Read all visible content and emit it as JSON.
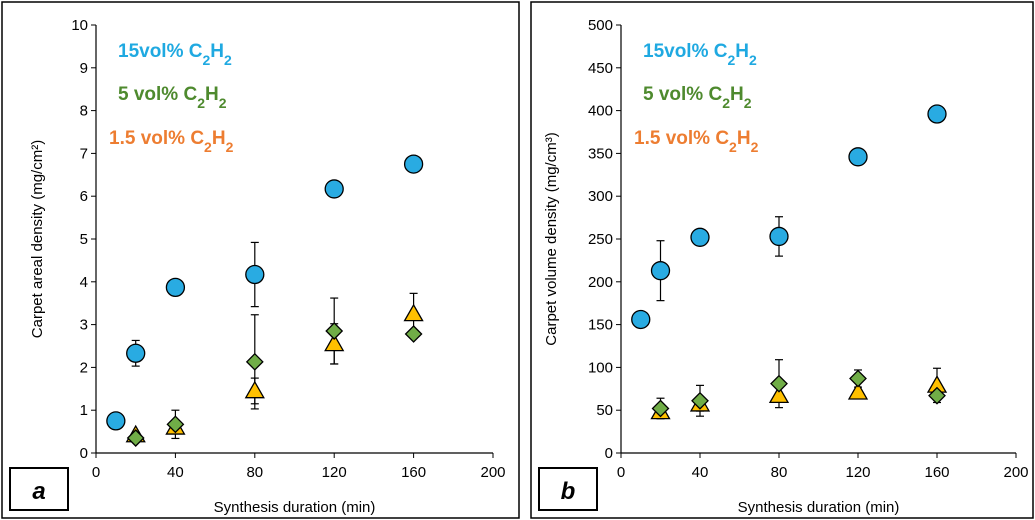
{
  "colors": {
    "s15": "#29ABE2",
    "s5": "#70AD47",
    "s15_text": "#1FA9E1",
    "s5_text": "#4E8A2E",
    "s1_5_text": "#ED7D31",
    "s1_5_fill": "#FFC000"
  },
  "legend": {
    "s15": {
      "prefix": "15vol% C",
      "sub1": "2",
      "mid": "H",
      "sub2": "2"
    },
    "s5": {
      "prefix": "5 vol% C",
      "sub1": "2",
      "mid": "H",
      "sub2": "2"
    },
    "s1_5": {
      "prefix": "1.5 vol% C",
      "sub1": "2",
      "mid": "H",
      "sub2": "2"
    }
  },
  "chart_data": [
    {
      "type": "scatter",
      "panel_label": "a",
      "xlabel": "Synthesis duration (min)",
      "ylabel": "Carpet areal density (mg/cm²)",
      "xlim": [
        0,
        200
      ],
      "ylim": [
        0,
        10
      ],
      "xticks": [
        0,
        40,
        80,
        120,
        160,
        200
      ],
      "yticks": [
        0,
        1,
        2,
        3,
        4,
        5,
        6,
        7,
        8,
        9,
        10
      ],
      "grid": false,
      "legend_position": "top-left",
      "series": [
        {
          "name": "15vol% C2H2",
          "marker": "circle",
          "x": [
            10,
            20,
            40,
            80,
            120,
            160
          ],
          "y": [
            0.75,
            2.33,
            3.87,
            4.17,
            6.17,
            6.75
          ],
          "err": [
            0,
            0.3,
            0,
            0.75,
            0,
            0
          ]
        },
        {
          "name": "5 vol% C2H2",
          "marker": "diamond",
          "x": [
            20,
            40,
            80,
            120,
            160
          ],
          "y": [
            0.35,
            0.67,
            2.13,
            2.85,
            2.78
          ],
          "err": [
            0,
            0.33,
            1.1,
            0.77,
            0
          ]
        },
        {
          "name": "1.5 vol% C2H2",
          "marker": "triangle",
          "x": [
            20,
            40,
            80,
            120,
            160
          ],
          "y": [
            0.42,
            0.6,
            1.45,
            2.55,
            3.25
          ],
          "err": [
            0,
            0,
            0.3,
            0.47,
            0.48
          ]
        }
      ]
    },
    {
      "type": "scatter",
      "panel_label": "b",
      "xlabel": "Synthesis duration (min)",
      "ylabel": "Carpet volume density (mg/cm³)",
      "xlim": [
        0,
        200
      ],
      "ylim": [
        0,
        500
      ],
      "xticks": [
        0,
        40,
        80,
        120,
        160,
        200
      ],
      "yticks": [
        0,
        50,
        100,
        150,
        200,
        250,
        300,
        350,
        400,
        450,
        500
      ],
      "grid": false,
      "legend_position": "top-left",
      "series": [
        {
          "name": "15vol% C2H2",
          "marker": "circle",
          "x": [
            10,
            20,
            40,
            80,
            120,
            160
          ],
          "y": [
            156,
            213,
            252,
            253,
            346,
            396
          ],
          "err": [
            0,
            35,
            0,
            23,
            0,
            0
          ]
        },
        {
          "name": "5 vol% C2H2",
          "marker": "diamond",
          "x": [
            20,
            40,
            80,
            120,
            160
          ],
          "y": [
            52,
            61,
            81,
            87,
            67
          ],
          "err": [
            12,
            18,
            28,
            10,
            0
          ]
        },
        {
          "name": "1.5 vol% C2H2",
          "marker": "triangle",
          "x": [
            20,
            40,
            80,
            120,
            160
          ],
          "y": [
            48,
            57,
            67,
            71,
            79
          ],
          "err": [
            0,
            8,
            0,
            0,
            20
          ]
        }
      ]
    }
  ]
}
